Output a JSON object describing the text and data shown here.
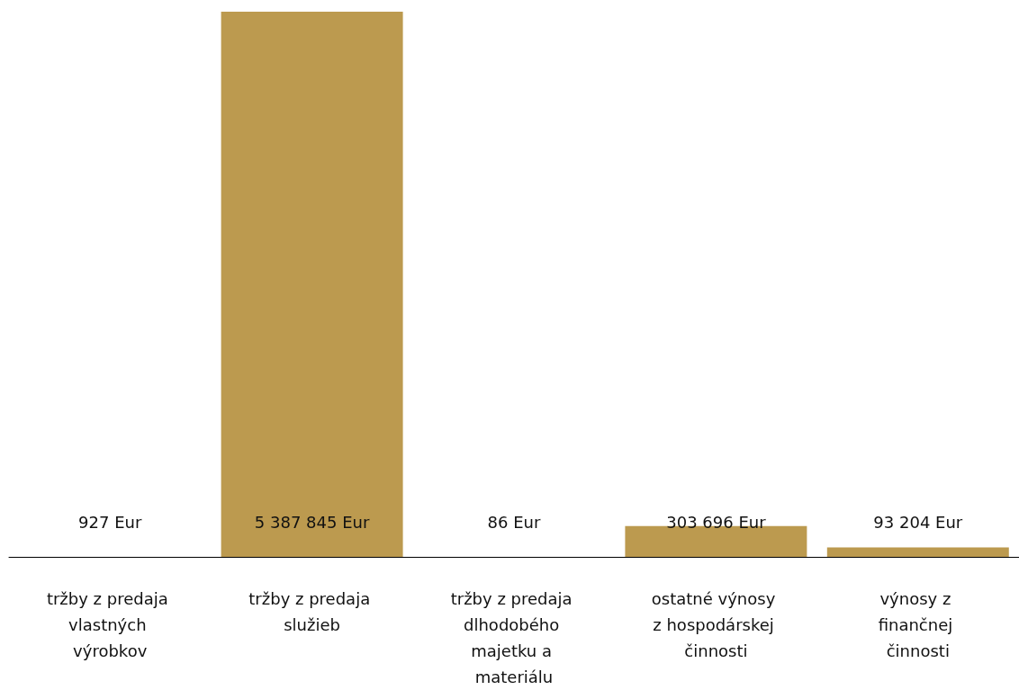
{
  "chart_data": {
    "type": "bar",
    "categories": [
      "tržby z predaja vlastných výrobkov",
      "tržby z predaja služieb",
      "tržby z predaja dlhodobého majetku a materiálu",
      "ostatné výnosy z hospodárskej činnosti",
      "výnosy z finančnej činnosti"
    ],
    "values": [
      927,
      5387845,
      86,
      303696,
      93204
    ],
    "value_labels": [
      "927 Eur",
      "5 387 845 Eur",
      "86 Eur",
      "303 696 Eur",
      "93 204 Eur"
    ],
    "color": "#bc9a4f"
  }
}
